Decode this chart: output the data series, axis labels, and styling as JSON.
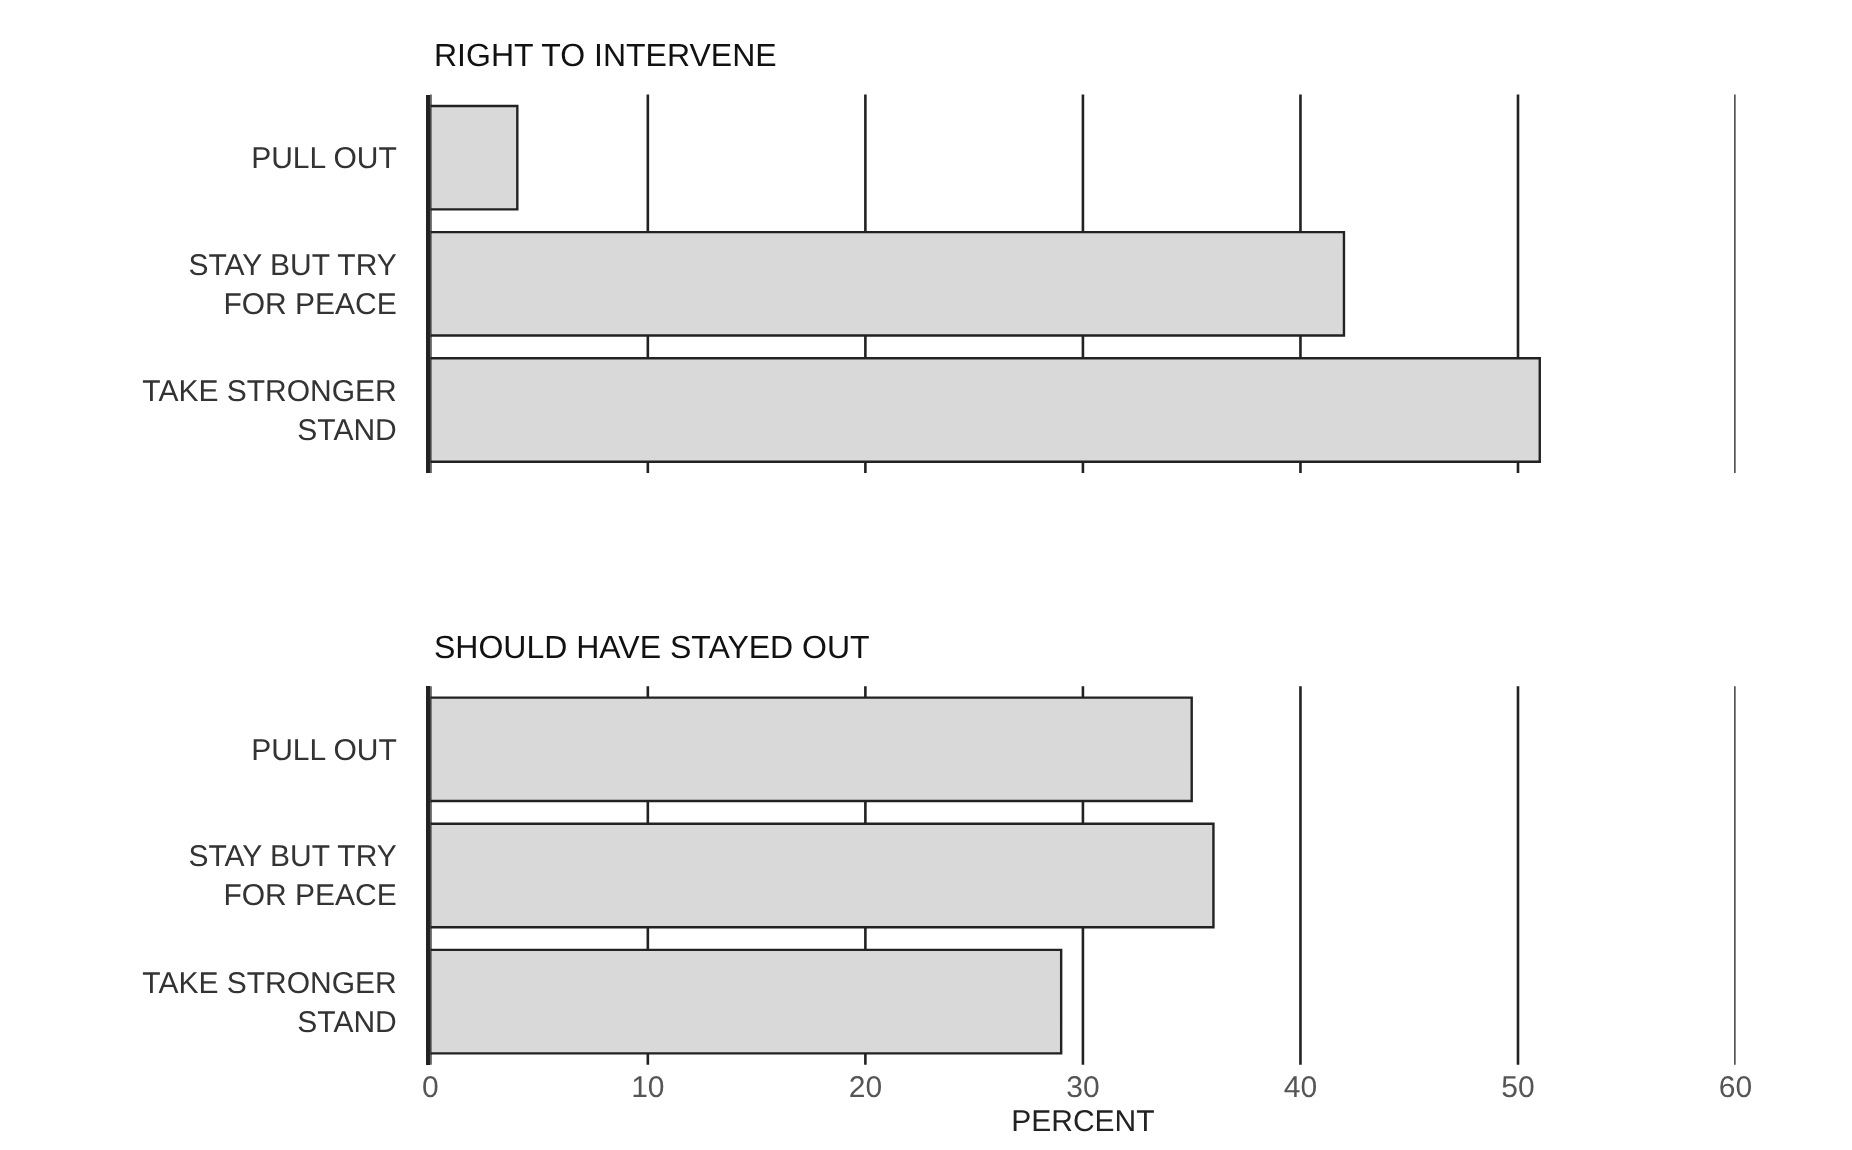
{
  "chart_data": [
    {
      "type": "bar",
      "orientation": "horizontal",
      "title": "RIGHT TO INTERVENE",
      "categories": [
        "PULL OUT",
        "STAY BUT TRY\nFOR PEACE",
        "TAKE STRONGER\nSTAND"
      ],
      "values": [
        4,
        42,
        51
      ],
      "color": "#d9d9d9",
      "xlim": [
        0,
        60
      ],
      "xticks": [
        0,
        10,
        20,
        30,
        40,
        50,
        60
      ],
      "grid": "x",
      "tick_labels": "y"
    },
    {
      "type": "bar",
      "orientation": "horizontal",
      "title": "SHOULD HAVE STAYED OUT",
      "xlabel": "PERCENT",
      "categories": [
        "PULL OUT",
        "STAY BUT TRY\nFOR PEACE",
        "TAKE STRONGER\nSTAND"
      ],
      "values": [
        35,
        36,
        29
      ],
      "color": "#d9d9d9",
      "xlim": [
        0,
        60
      ],
      "xticks": [
        0,
        10,
        20,
        30,
        40,
        50,
        60
      ],
      "grid": "x"
    }
  ]
}
